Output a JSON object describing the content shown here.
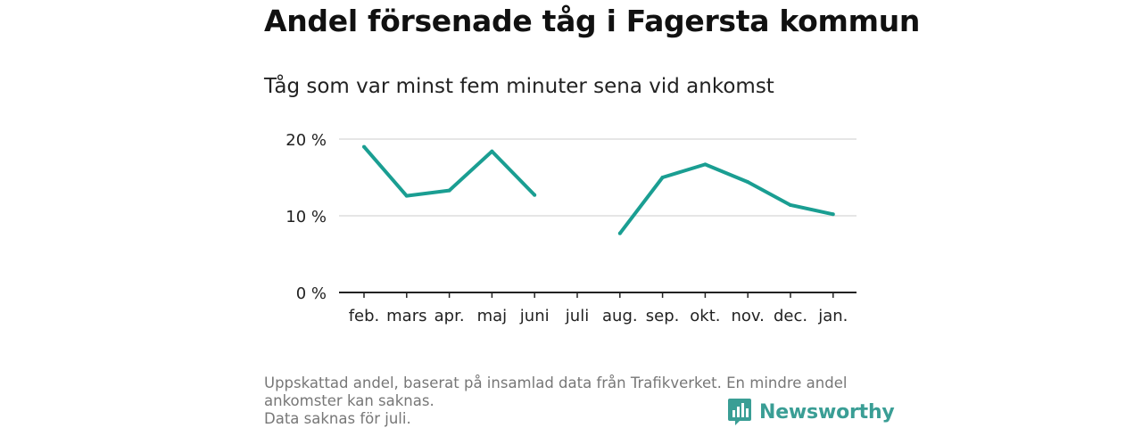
{
  "title": "Andel försenade tåg i Fagersta kommun",
  "subtitle": "Tåg som var minst fem minuter sena vid ankomst",
  "chart_data": {
    "type": "line",
    "categories": [
      "feb.",
      "mars",
      "apr.",
      "maj",
      "juni",
      "juli",
      "aug.",
      "sep.",
      "okt.",
      "nov.",
      "dec.",
      "jan."
    ],
    "series": [
      {
        "values": [
          19.0,
          12.6,
          13.3,
          18.4,
          12.7,
          null,
          7.7,
          15.0,
          16.7,
          14.4,
          11.4,
          10.2
        ]
      }
    ],
    "yticks": [
      0,
      10,
      20
    ],
    "ytick_labels": [
      "0 %",
      "10 %",
      "20 %"
    ],
    "ylim": [
      0,
      20
    ],
    "grid": true,
    "line_color": "#1a9e92"
  },
  "footer": {
    "line1": "Uppskattad andel, baserat på insamlad data från Trafikverket. En mindre andel ankomster kan saknas.",
    "line2": "Data saknas för juli."
  },
  "brand": {
    "name": "Newsworthy",
    "icon": "newsworthy-logo-icon",
    "color": "#3a9e95"
  }
}
